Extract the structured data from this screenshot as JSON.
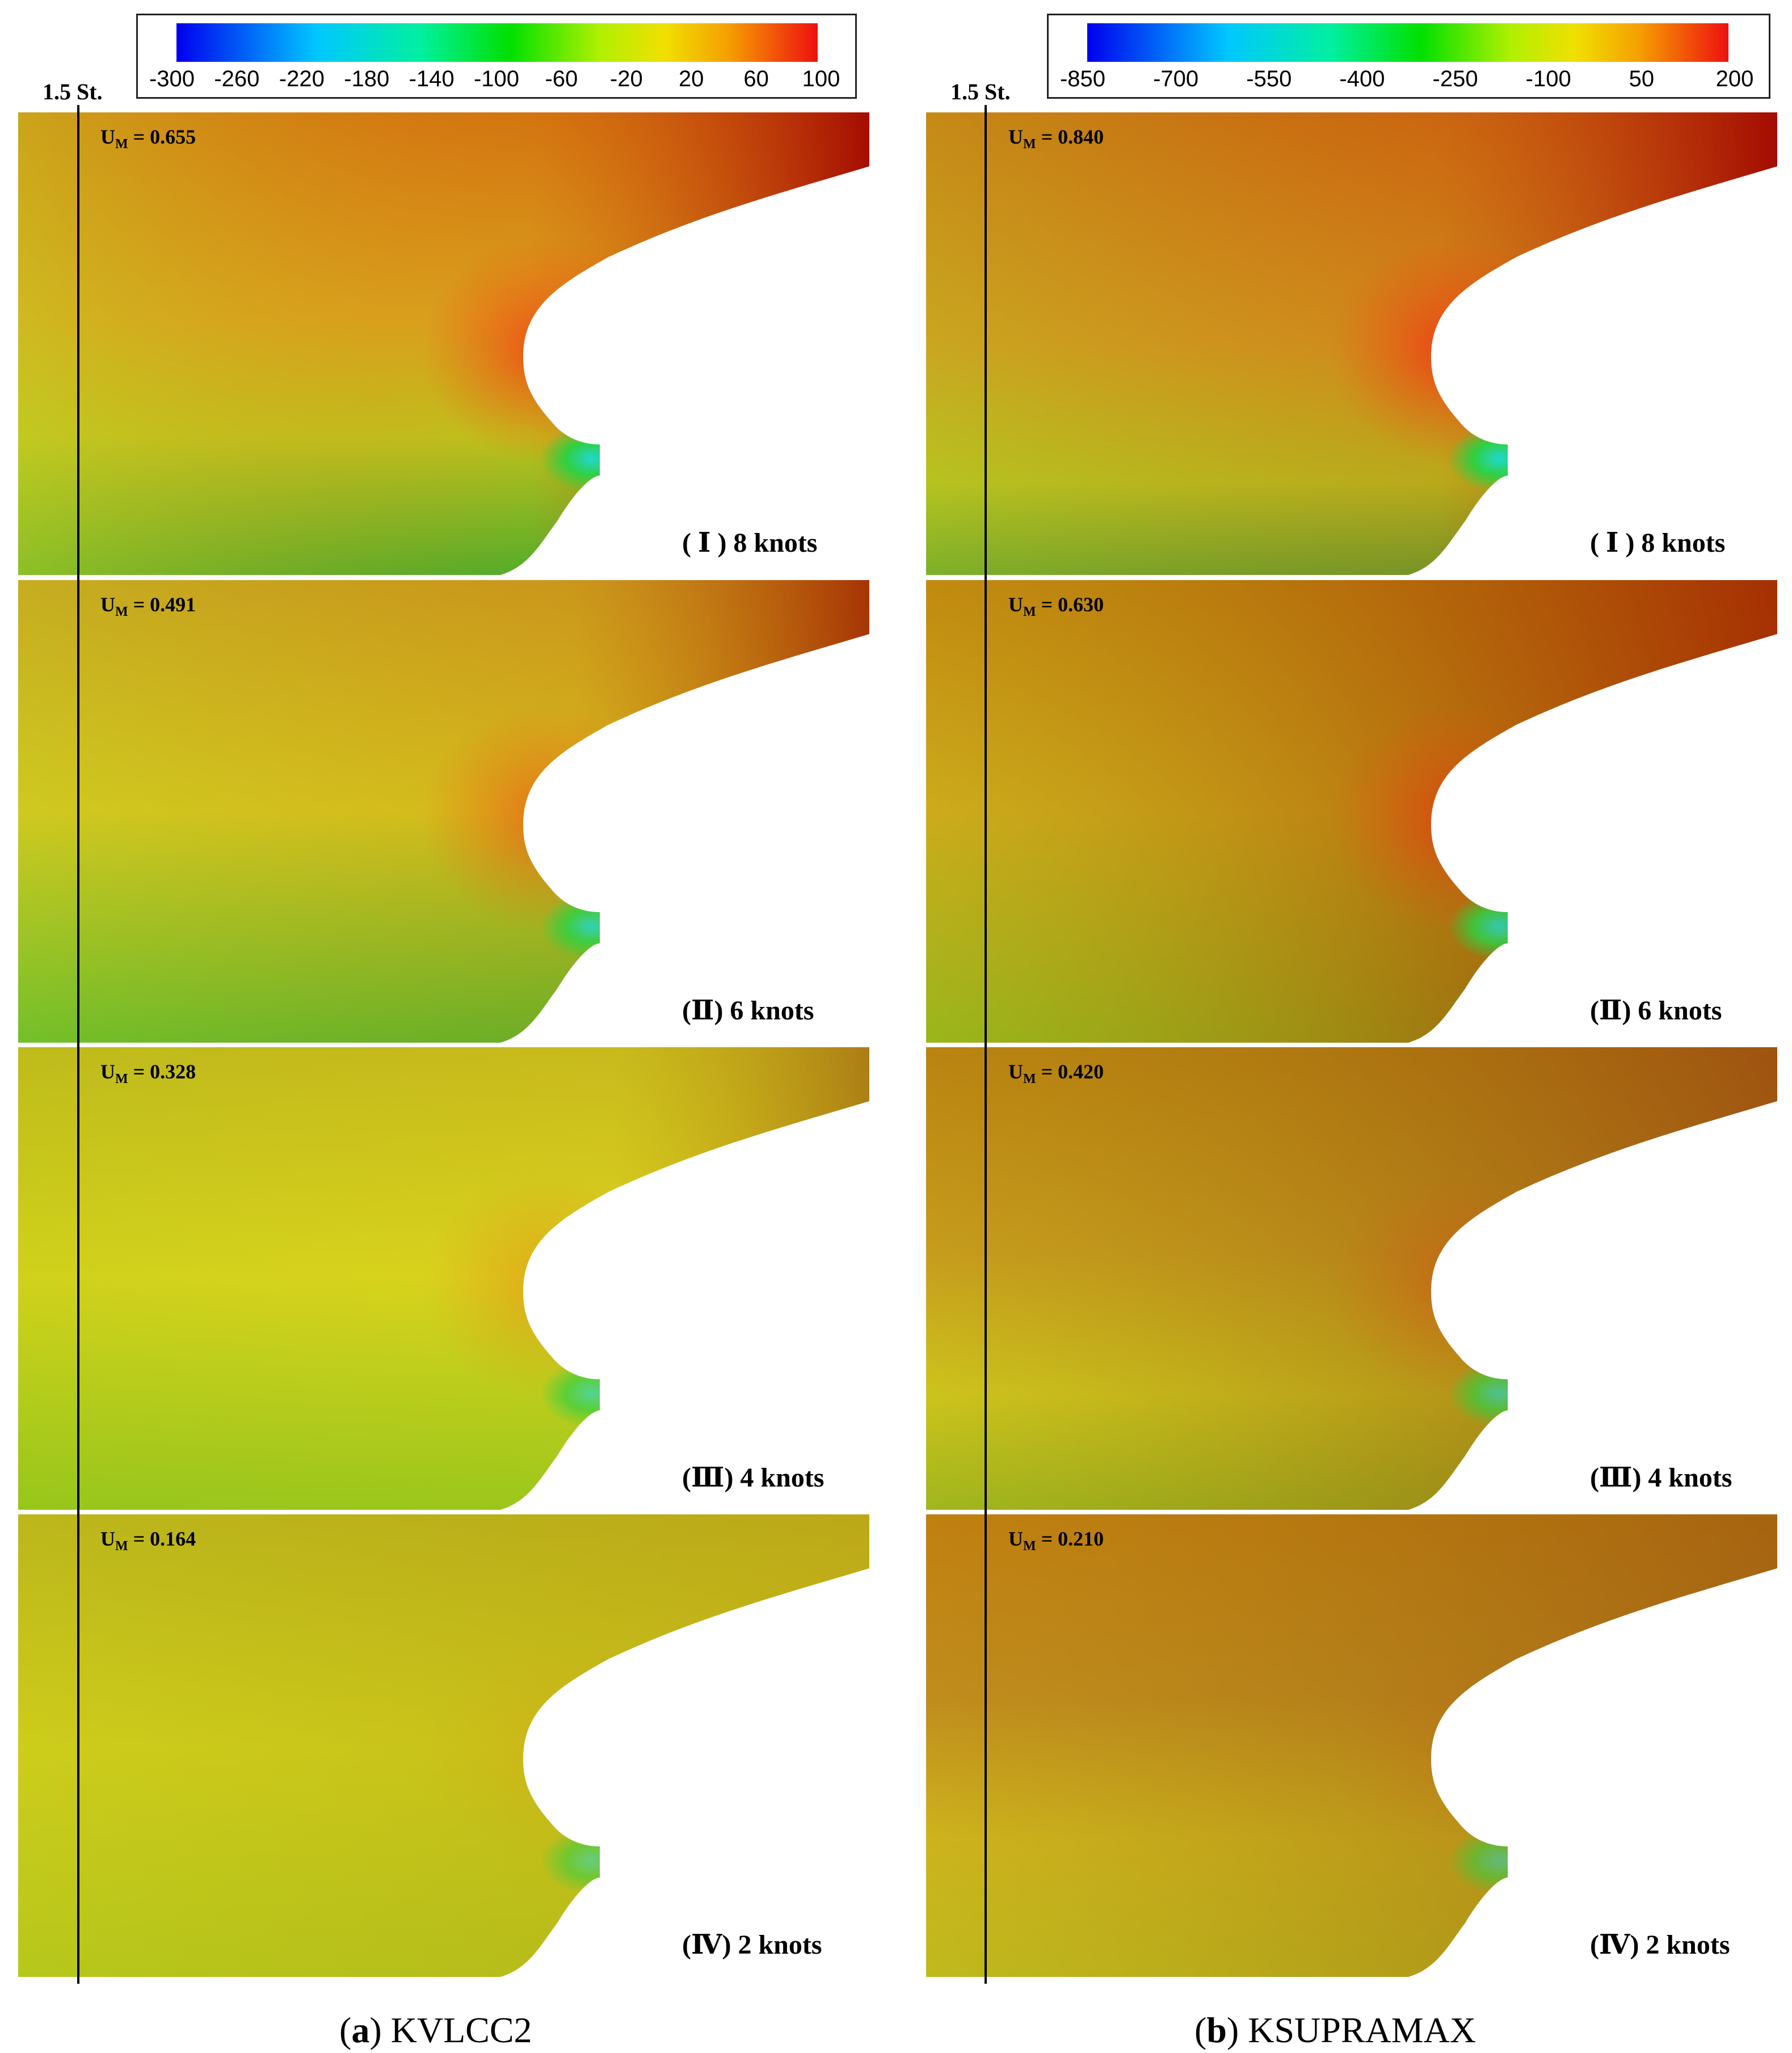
{
  "colorbar_a": {
    "ticks": [
      "-300",
      "-260",
      "-220",
      "-180",
      "-140",
      "-100",
      "-60",
      "-20",
      "20",
      "60",
      "100"
    ]
  },
  "colorbar_b": {
    "ticks": [
      "-850",
      "-700",
      "-550",
      "-400",
      "-250",
      "-100",
      "50",
      "200"
    ]
  },
  "station_label": "1.5 St.",
  "um_prefix": "U",
  "um_sub": "M",
  "panels_a": [
    {
      "um": "= 0.655",
      "case": "( Ⅰ ) 8 knots"
    },
    {
      "um": "= 0.491",
      "case": "(Ⅱ) 6 knots"
    },
    {
      "um": "= 0.328",
      "case": "(Ⅲ) 4 knots"
    },
    {
      "um": "= 0.164",
      "case": "(Ⅳ) 2 knots"
    }
  ],
  "panels_b": [
    {
      "um": "= 0.840",
      "case": "( Ⅰ ) 8 knots"
    },
    {
      "um": "= 0.630",
      "case": "(Ⅱ) 6 knots"
    },
    {
      "um": "= 0.420",
      "case": "(Ⅲ) 4 knots"
    },
    {
      "um": "= 0.210",
      "case": "(Ⅳ) 2 knots"
    }
  ],
  "caption_a": {
    "letter": "a",
    "text": ") KVLCC2"
  },
  "caption_b": {
    "letter": "b",
    "text": ") KSUPRAMAX"
  },
  "colors": {
    "red": "#c40000",
    "orange": "#e07800",
    "yellow": "#e8e800",
    "green": "#22cc22",
    "cyan": "#00e0ff",
    "blue": "#0000ee"
  }
}
